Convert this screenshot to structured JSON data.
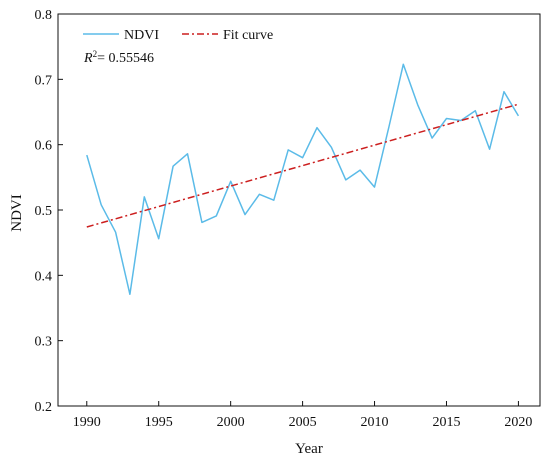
{
  "chart_data": {
    "type": "line",
    "xlabel": "Year",
    "ylabel": "NDVI",
    "xlim": [
      1988,
      2021.5
    ],
    "ylim": [
      0.2,
      0.8
    ],
    "xticks": [
      1990,
      1995,
      2000,
      2005,
      2010,
      2015,
      2020
    ],
    "yticks": [
      0.2,
      0.3,
      0.4,
      0.5,
      0.6,
      0.7,
      0.8
    ],
    "grid": false,
    "legend_position": "top-left",
    "annotation": {
      "r2_symbol": "R",
      "r2_superscript": "2",
      "r2_value": "= 0.55546"
    },
    "series": [
      {
        "name": "NDVI",
        "color": "#5bbbe8",
        "style": "solid",
        "x": [
          1990,
          1991,
          1992,
          1993,
          1994,
          1995,
          1996,
          1997,
          1998,
          1999,
          2000,
          2001,
          2002,
          2003,
          2004,
          2005,
          2006,
          2007,
          2008,
          2009,
          2010,
          2011,
          2012,
          2013,
          2014,
          2015,
          2016,
          2017,
          2018,
          2019,
          2020
        ],
        "values": [
          0.584,
          0.508,
          0.466,
          0.371,
          0.52,
          0.456,
          0.567,
          0.586,
          0.481,
          0.491,
          0.544,
          0.493,
          0.524,
          0.515,
          0.592,
          0.58,
          0.626,
          0.596,
          0.546,
          0.561,
          0.535,
          0.627,
          0.723,
          0.661,
          0.61,
          0.64,
          0.637,
          0.652,
          0.593,
          0.681,
          0.644
        ]
      },
      {
        "name": "Fit curve",
        "color": "#cc1f1f",
        "style": "dash-dot",
        "x": [
          1990,
          2020
        ],
        "values": [
          0.474,
          0.662
        ]
      }
    ]
  }
}
